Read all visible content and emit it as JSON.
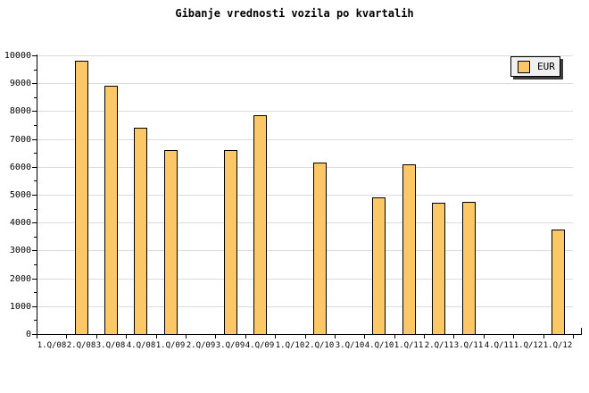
{
  "title": "Gibanje vrednosti vozila po kvartalih",
  "legend": {
    "label": "EUR",
    "swatch_color": "#FCC766",
    "background": "#F0F0F0",
    "shadow_color": "#3C3C3C"
  },
  "colors": {
    "background": "#FFFFFF",
    "bar_fill": "#FCC766",
    "bar_border": "#000000",
    "gridline": "#DCDCDC",
    "axis": "#000000",
    "text": "#000000"
  },
  "chart_data": {
    "type": "bar",
    "title": "Gibanje vrednosti vozila po kvartalih",
    "categories": [
      "1.Q/08",
      "2.Q/08",
      "3.Q/08",
      "4.Q/08",
      "1.Q/09",
      "2.Q/09",
      "3.Q/09",
      "4.Q/09",
      "1.Q/10",
      "2.Q/10",
      "3.Q/10",
      "4.Q/10",
      "1.Q/11",
      "2.Q/11",
      "3.Q/11",
      "4.Q/11",
      "1.Q/12",
      "1.Q/12"
    ],
    "series": [
      {
        "name": "EUR",
        "values": [
          null,
          9800,
          8900,
          7400,
          6600,
          null,
          6600,
          7850,
          null,
          6150,
          null,
          4900,
          6100,
          4700,
          4750,
          null,
          null,
          3750
        ]
      }
    ],
    "xlabel": "",
    "ylabel": "",
    "ylim": [
      0,
      10000
    ],
    "ytick_interval": 1000,
    "ytick_minor_interval": 500,
    "yticks": [
      0,
      1000,
      2000,
      3000,
      4000,
      5000,
      6000,
      7000,
      8000,
      9000,
      10000
    ],
    "grid": "horizontal-major",
    "legend_position": "top-right"
  }
}
